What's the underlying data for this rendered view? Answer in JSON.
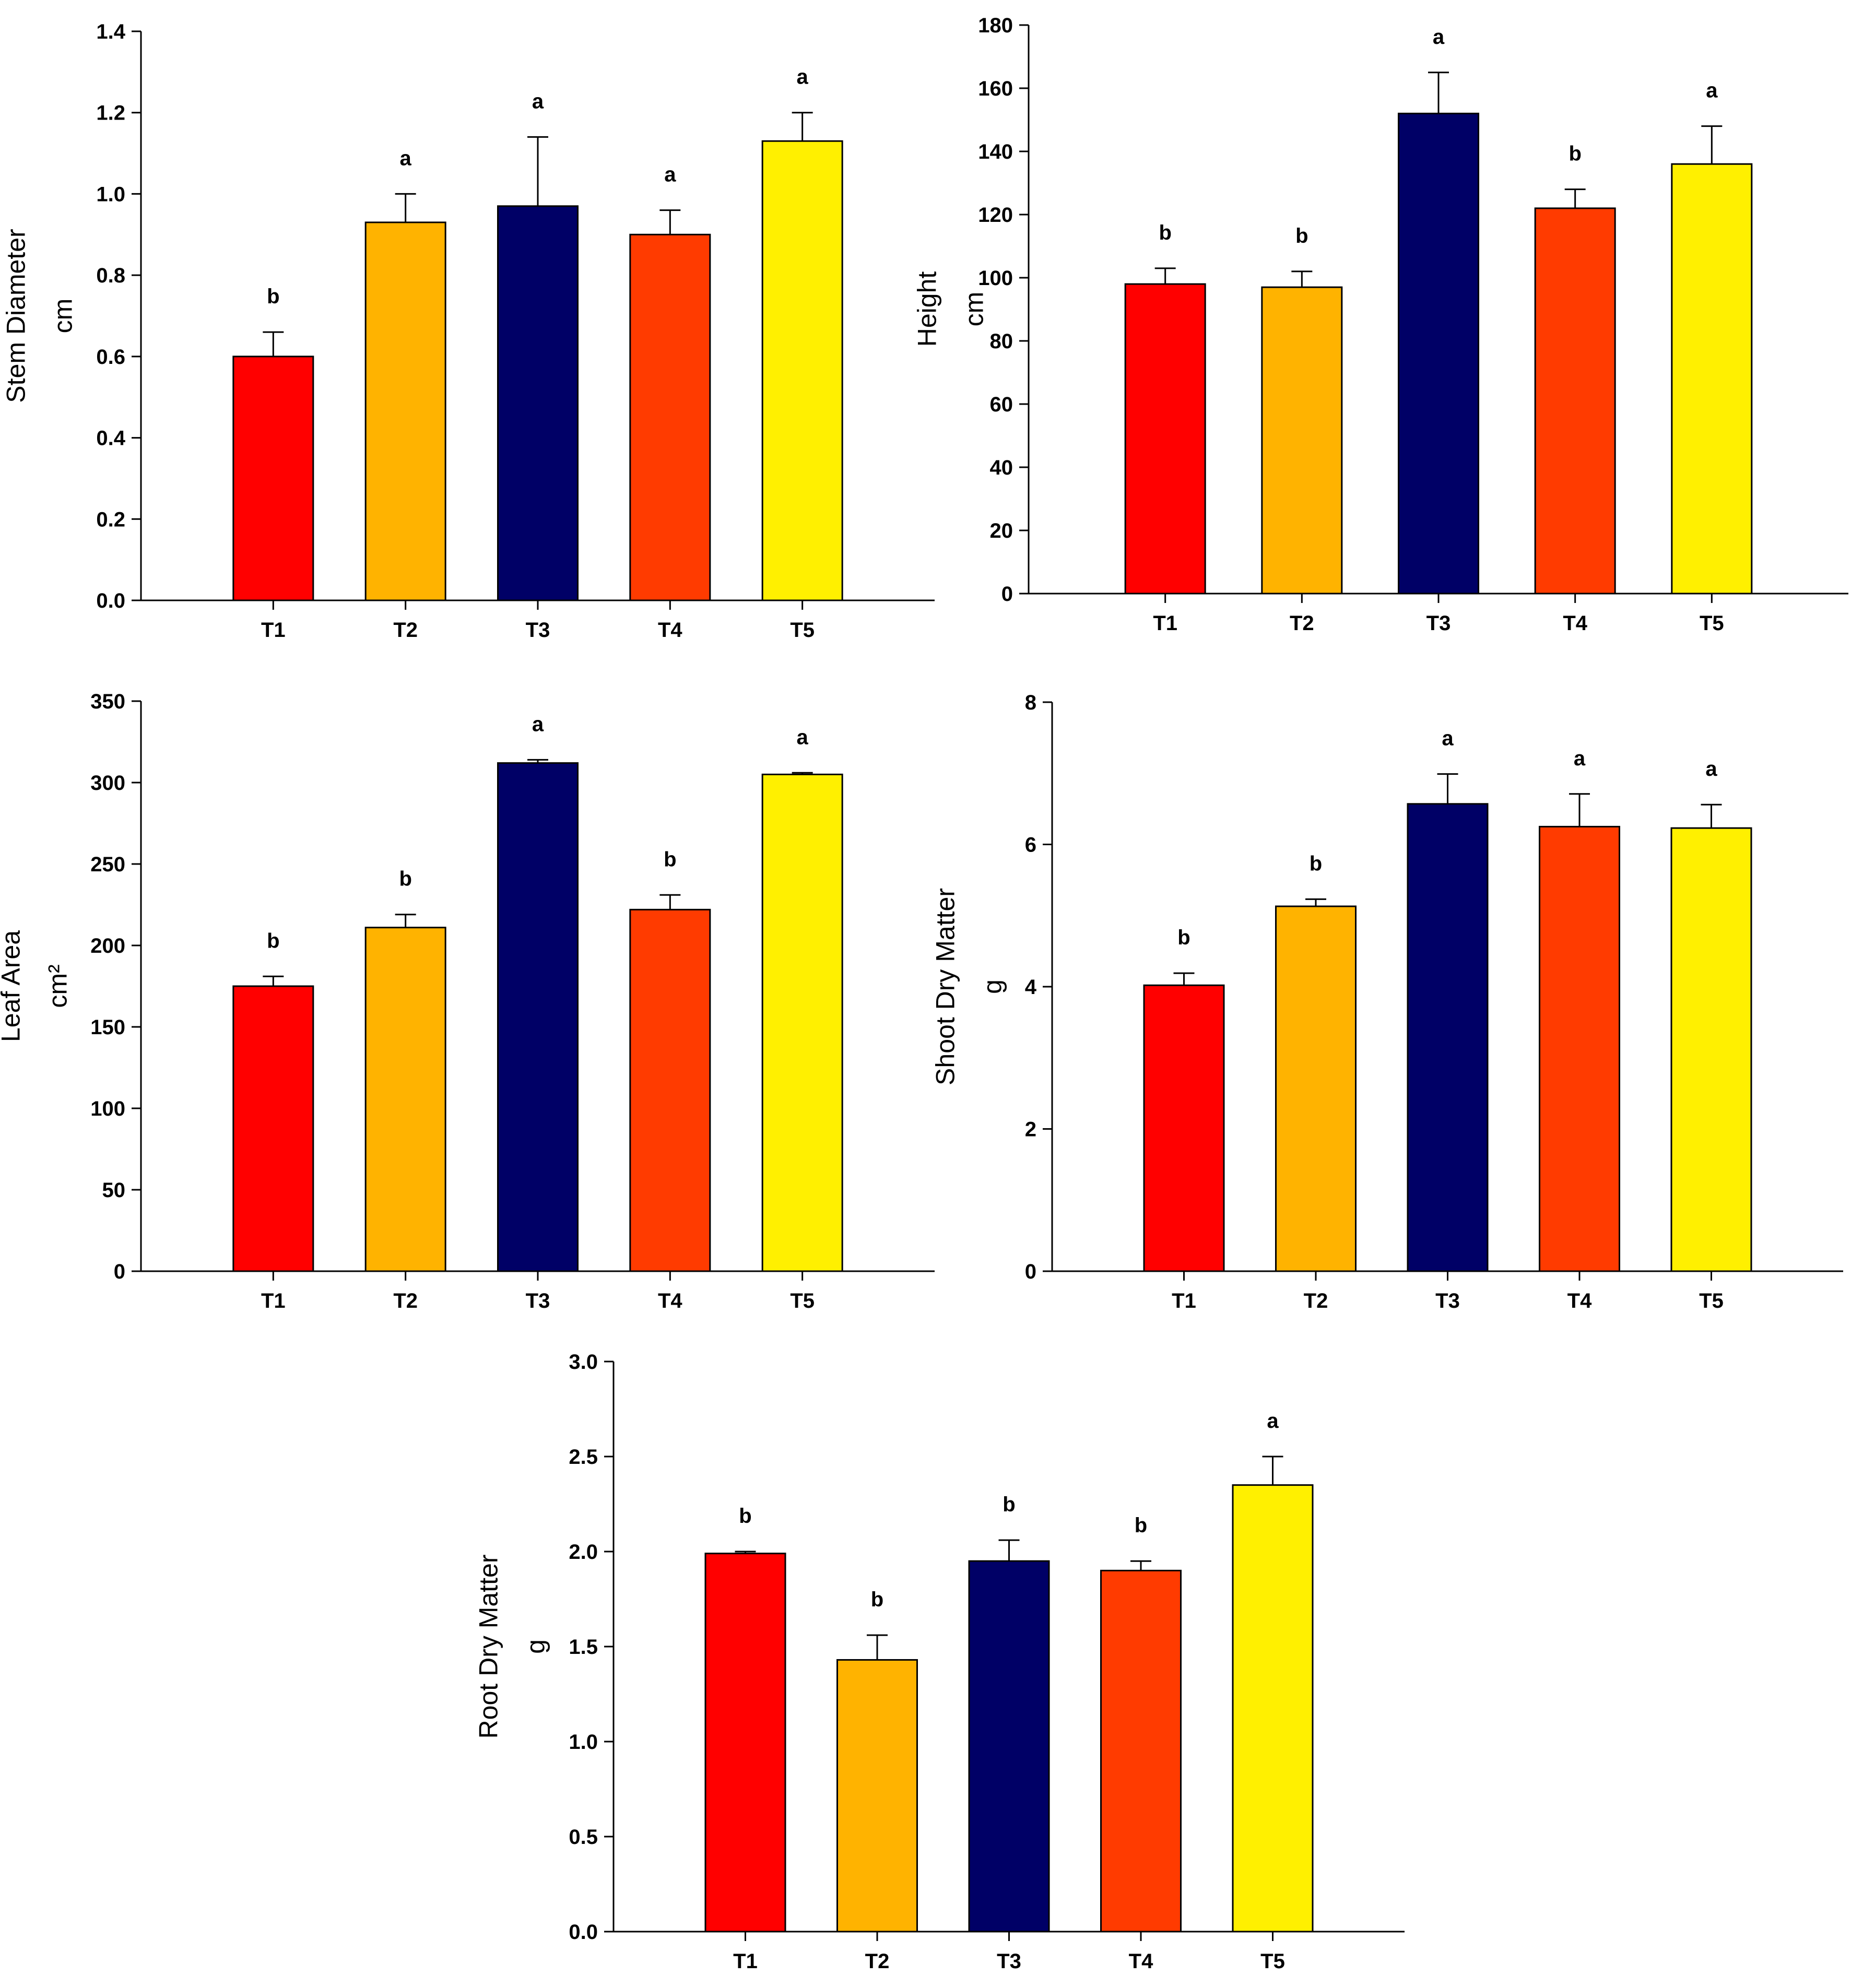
{
  "colors": {
    "T1": "#FF0000",
    "T2": "#FFB300",
    "T3": "#000066",
    "T4": "#FF3B00",
    "T5": "#FFF000"
  },
  "chart_data": [
    {
      "type": "bar",
      "position": "top-left",
      "categories": [
        "T1",
        "T2",
        "T3",
        "T4",
        "T5"
      ],
      "values": [
        0.6,
        0.93,
        0.97,
        0.9,
        1.13
      ],
      "errors": [
        0.06,
        0.07,
        0.17,
        0.06,
        0.07
      ],
      "significance": [
        "b",
        "a",
        "a",
        "a",
        "a"
      ],
      "ylabel": [
        "Stem Diameter",
        "cm"
      ],
      "ylim": [
        0,
        1.4
      ],
      "yticks": [
        0.0,
        0.2,
        0.4,
        0.6,
        0.8,
        1.0,
        1.2,
        1.4
      ],
      "ytick_labels": [
        "0.0",
        "0.2",
        "0.4",
        "0.6",
        "0.8",
        "1.0",
        "1.2",
        "1.4"
      ]
    },
    {
      "type": "bar",
      "position": "top-right",
      "categories": [
        "T1",
        "T2",
        "T3",
        "T4",
        "T5"
      ],
      "values": [
        98,
        97,
        152,
        122,
        136
      ],
      "errors": [
        5,
        5,
        13,
        6,
        12
      ],
      "significance": [
        "b",
        "b",
        "a",
        "b",
        "a"
      ],
      "ylabel": [
        "Height",
        "cm"
      ],
      "ylim": [
        0,
        180
      ],
      "yticks": [
        0,
        20,
        40,
        60,
        80,
        100,
        120,
        140,
        160,
        180
      ],
      "ytick_labels": [
        "0",
        "20",
        "40",
        "60",
        "80",
        "100",
        "120",
        "140",
        "160",
        "180"
      ]
    },
    {
      "type": "bar",
      "position": "middle-left",
      "categories": [
        "T1",
        "T2",
        "T3",
        "T4",
        "T5"
      ],
      "values": [
        175,
        211,
        312,
        222,
        305
      ],
      "errors": [
        6,
        8,
        2,
        9,
        1
      ],
      "significance": [
        "b",
        "b",
        "a",
        "b",
        "a"
      ],
      "ylabel": [
        "Leaf Area",
        "cm²"
      ],
      "ylim": [
        0,
        350
      ],
      "yticks": [
        0,
        50,
        100,
        150,
        200,
        250,
        300,
        350
      ],
      "ytick_labels": [
        "0",
        "50",
        "100",
        "150",
        "200",
        "250",
        "300",
        "350"
      ]
    },
    {
      "type": "bar",
      "position": "middle-right",
      "categories": [
        "T1",
        "T2",
        "T3",
        "T4",
        "T5"
      ],
      "values": [
        4.02,
        5.13,
        6.57,
        6.25,
        6.23
      ],
      "errors": [
        0.17,
        0.1,
        0.42,
        0.46,
        0.33
      ],
      "significance": [
        "b",
        "b",
        "a",
        "a",
        "a"
      ],
      "ylabel": [
        "Shoot Dry Matter",
        "g"
      ],
      "ylim": [
        0,
        8
      ],
      "yticks": [
        0,
        2,
        4,
        6,
        8
      ],
      "ytick_labels": [
        "0",
        "2",
        "4",
        "6",
        "8"
      ]
    },
    {
      "type": "bar",
      "position": "bottom-center",
      "categories": [
        "T1",
        "T2",
        "T3",
        "T4",
        "T5"
      ],
      "values": [
        1.99,
        1.43,
        1.95,
        1.9,
        2.35
      ],
      "errors": [
        0.01,
        0.13,
        0.11,
        0.05,
        0.15
      ],
      "significance": [
        "b",
        "b",
        "b",
        "b",
        "a"
      ],
      "ylabel": [
        "Root Dry Matter",
        "g"
      ],
      "ylim": [
        0,
        3.0
      ],
      "yticks": [
        0.0,
        0.5,
        1.0,
        1.5,
        2.0,
        2.5,
        3.0
      ],
      "ytick_labels": [
        "0.0",
        "0.5",
        "1.0",
        "1.5",
        "2.0",
        "2.5",
        "3.0"
      ]
    }
  ]
}
